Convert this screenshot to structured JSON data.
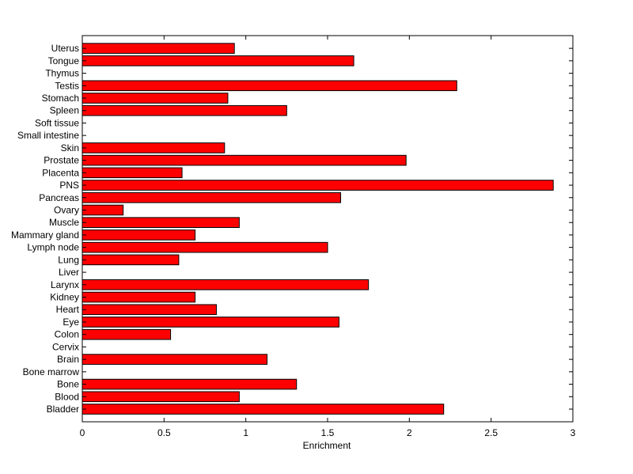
{
  "chart_data": {
    "type": "bar",
    "orientation": "horizontal",
    "categories": [
      "Bladder",
      "Blood",
      "Bone",
      "Bone marrow",
      "Brain",
      "Cervix",
      "Colon",
      "Eye",
      "Heart",
      "Kidney",
      "Larynx",
      "Liver",
      "Lung",
      "Lymph node",
      "Mammary gland",
      "Muscle",
      "Ovary",
      "Pancreas",
      "PNS",
      "Placenta",
      "Prostate",
      "Skin",
      "Small intestine",
      "Soft tissue",
      "Spleen",
      "Stomach",
      "Testis",
      "Thymus",
      "Tongue",
      "Uterus"
    ],
    "values": [
      2.21,
      0.96,
      1.31,
      0,
      1.13,
      0,
      0.54,
      1.57,
      0.82,
      0.69,
      1.75,
      0,
      0.59,
      1.5,
      0.69,
      0.96,
      0.25,
      1.58,
      2.88,
      0.61,
      1.98,
      0.87,
      0,
      0,
      1.25,
      0.89,
      2.29,
      0,
      1.66,
      0.93
    ],
    "title": "",
    "xlabel": "Enrichment",
    "ylabel": "",
    "xlim": [
      0,
      3
    ],
    "xticks": [
      0,
      0.5,
      1,
      1.5,
      2,
      2.5,
      3
    ],
    "xtick_labels": [
      "0",
      "0.5",
      "1",
      "1.5",
      "2",
      "2.5",
      "3"
    ],
    "grid": false,
    "colors": {
      "bar_fill": "#ff0000",
      "bar_edge": "#000000",
      "axis": "#000000",
      "background": "#ffffff"
    }
  }
}
